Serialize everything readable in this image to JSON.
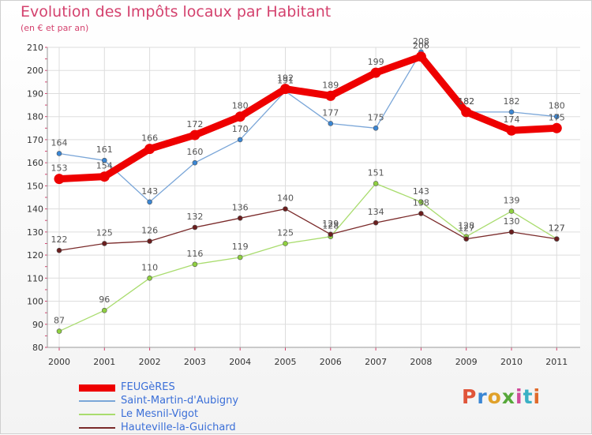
{
  "header": {
    "title": "Evolution des Impôts locaux par Habitant",
    "subtitle": "(en € et par an)"
  },
  "logo": {
    "text": "Proxiti",
    "colors": [
      "#e0553a",
      "#3a86d4",
      "#e0a12a",
      "#57a83a",
      "#d04a9a",
      "#3ab0c4",
      "#e06a2a"
    ]
  },
  "chart_data": {
    "type": "line",
    "title": "Evolution des Impôts locaux par Habitant",
    "subtitle": "(en € et par an)",
    "xlabel": "",
    "ylabel": "",
    "ylim": [
      80,
      210
    ],
    "yticks": [
      80,
      90,
      100,
      110,
      120,
      130,
      140,
      150,
      160,
      170,
      180,
      190,
      200,
      210
    ],
    "x": [
      "2000",
      "2001",
      "2002",
      "2003",
      "2004",
      "2005",
      "2006",
      "2007",
      "2008",
      "2009",
      "2010",
      "2011"
    ],
    "legend_position": "bottom-left",
    "series": [
      {
        "name": "FEUGèRES",
        "color": "#ee0000",
        "marker": "#ee0000",
        "emphasis": true,
        "values": [
          153,
          154,
          166,
          172,
          180,
          192,
          189,
          199,
          206,
          182,
          174,
          175
        ]
      },
      {
        "name": "Saint-Martin-d'Aubigny",
        "color": "#7aa6d8",
        "marker": "#3a86d4",
        "emphasis": false,
        "values": [
          164,
          161,
          143,
          160,
          170,
          191,
          177,
          175,
          208,
          182,
          182,
          180
        ]
      },
      {
        "name": "Le Mesnil-Vigot",
        "color": "#a9dc6e",
        "marker": "#8fd040",
        "emphasis": false,
        "values": [
          87,
          96,
          110,
          116,
          119,
          125,
          128,
          151,
          143,
          128,
          139,
          127
        ]
      },
      {
        "name": "Hauteville-la-Guichard",
        "color": "#7a2a2a",
        "marker": "#6a1e1e",
        "emphasis": false,
        "values": [
          122,
          125,
          126,
          132,
          136,
          140,
          129,
          134,
          138,
          127,
          130,
          127
        ]
      }
    ]
  }
}
